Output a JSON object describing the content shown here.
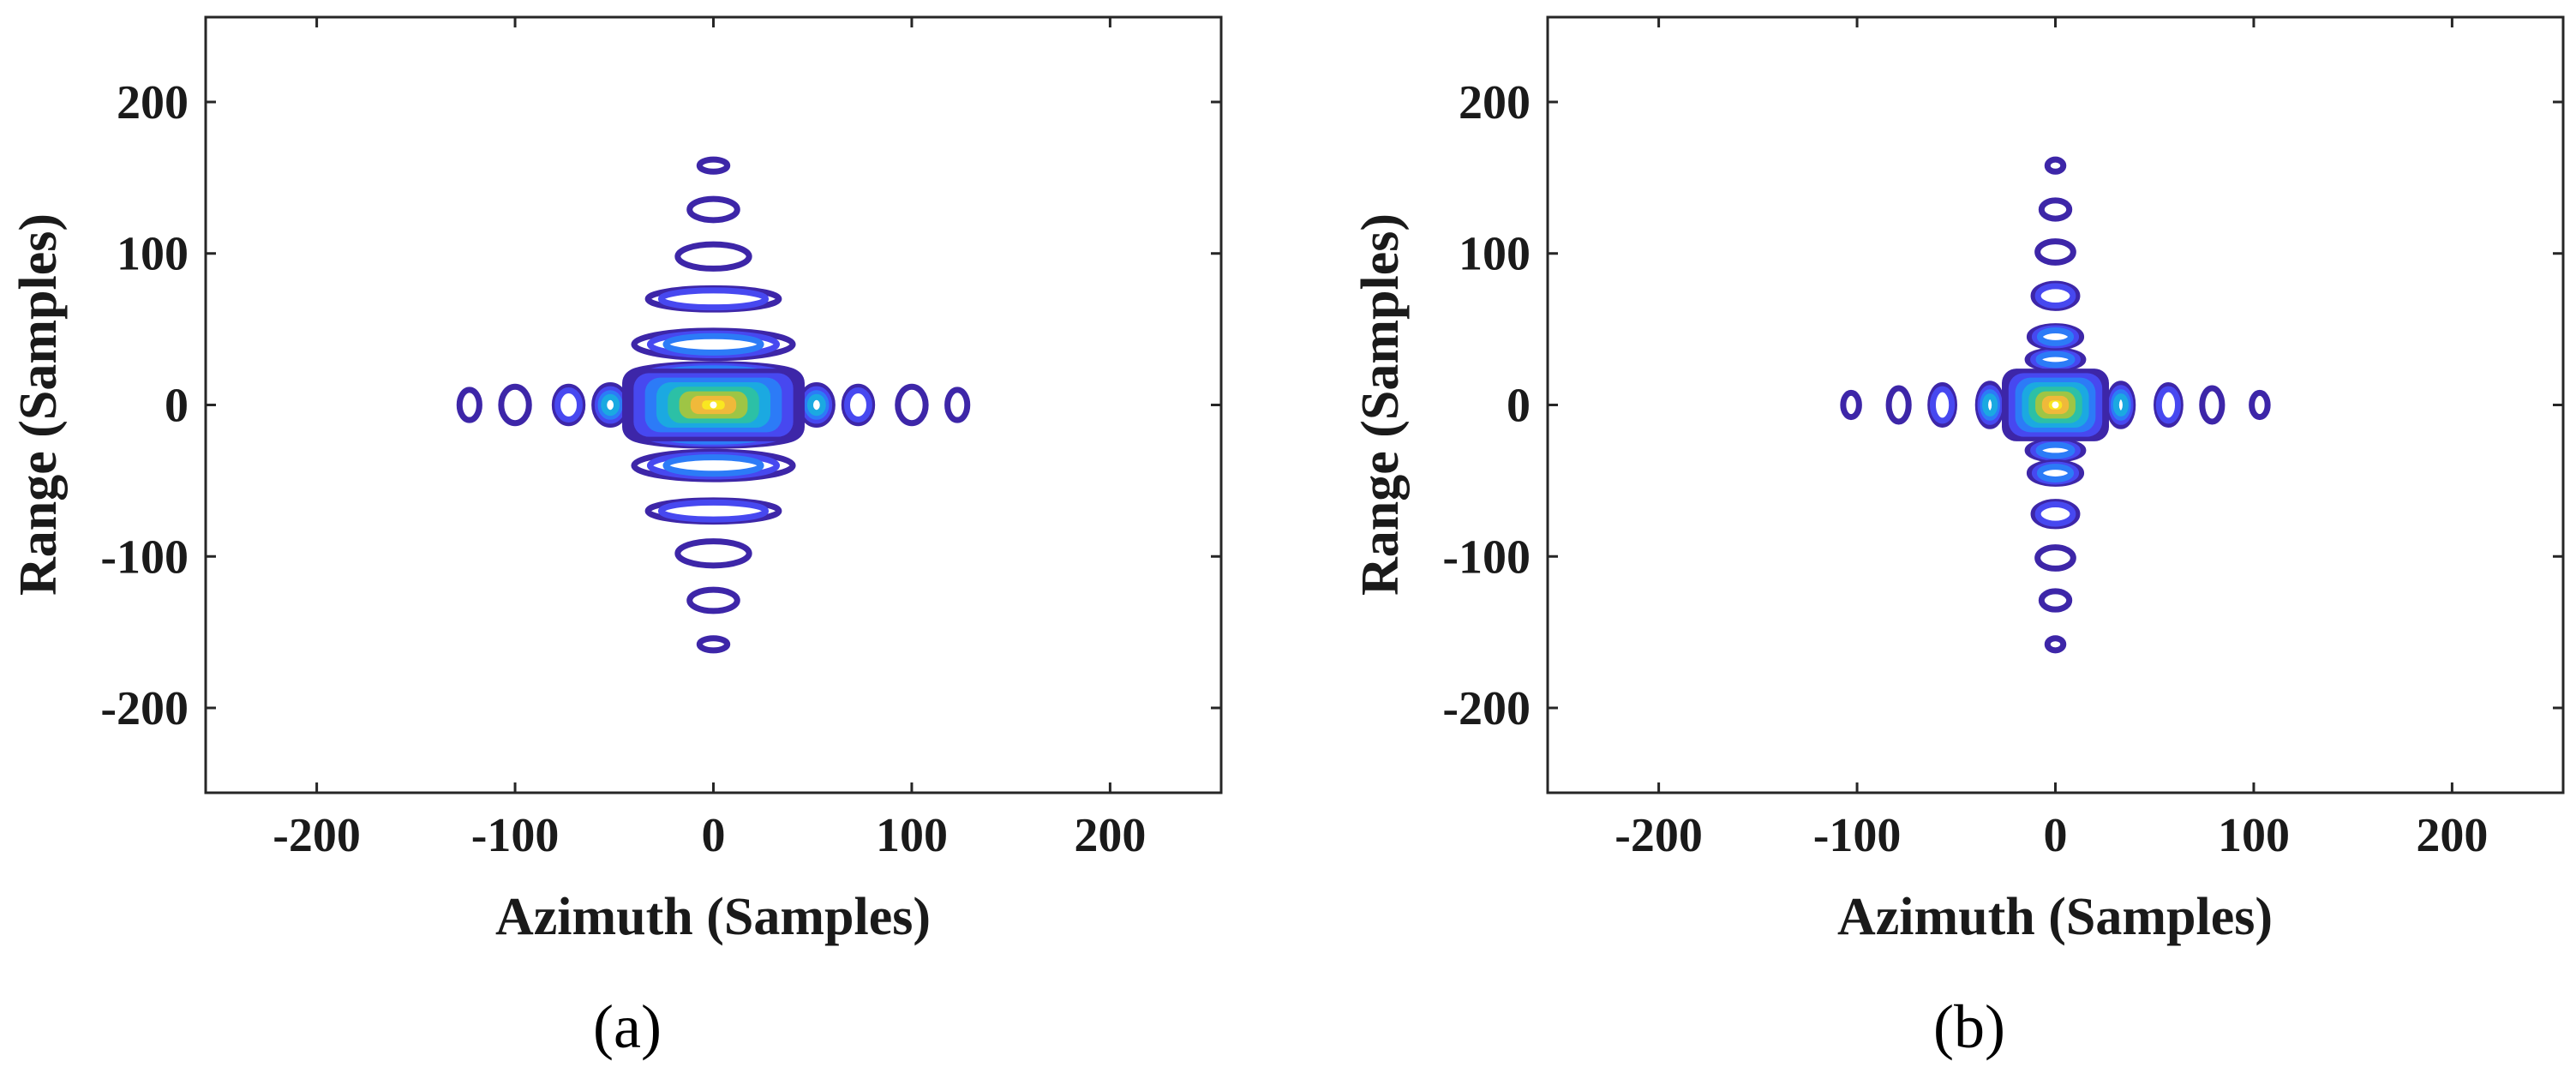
{
  "figure": {
    "panels": [
      {
        "label": "(a)",
        "xlabel": "Azimuth (Samples)",
        "ylabel": "Range (Samples)"
      },
      {
        "label": "(b)",
        "xlabel": "Azimuth (Samples)",
        "ylabel": "Range (Samples)"
      }
    ]
  },
  "chart_data": [
    {
      "type": "contour",
      "label": "(a)",
      "xlabel": "Azimuth (Samples)",
      "ylabel": "Range (Samples)",
      "xlim": [
        -256,
        256
      ],
      "ylim": [
        -256,
        256
      ],
      "xticks": [
        -200,
        -100,
        0,
        100,
        200
      ],
      "yticks": [
        -200,
        -100,
        0,
        100,
        200
      ],
      "colormap": [
        "#3d26a8",
        "#4748f0",
        "#2c7bf7",
        "#1ba9e1",
        "#2cc0a6",
        "#9ec545",
        "#f0b93a",
        "#f9e721"
      ],
      "peak": {
        "azimuth": 0,
        "range": 0
      },
      "azimuth_sidelobes": [
        {
          "center": 30,
          "half_width": 6,
          "half_height": 9,
          "level": 4
        },
        {
          "center": 52,
          "half_width": 8,
          "half_height": 13,
          "level": 3
        },
        {
          "center": 73,
          "half_width": 7,
          "half_height": 12,
          "level": 1
        },
        {
          "center": 100,
          "half_width": 7,
          "half_height": 12,
          "level": 0
        },
        {
          "center": 123,
          "half_width": 5,
          "half_height": 10,
          "level": 0
        }
      ],
      "range_sidelobes": [
        {
          "center": 20,
          "half_width": 42,
          "half_height": 7,
          "level": 2
        },
        {
          "center": 40,
          "half_width": 40,
          "half_height": 9,
          "level": 2
        },
        {
          "center": 70,
          "half_width": 33,
          "half_height": 7,
          "level": 1
        },
        {
          "center": 98,
          "half_width": 18,
          "half_height": 8,
          "level": 0
        },
        {
          "center": 129,
          "half_width": 12,
          "half_height": 7,
          "level": 0
        },
        {
          "center": 158,
          "half_width": 7,
          "half_height": 4,
          "level": 0
        }
      ]
    },
    {
      "type": "contour",
      "label": "(b)",
      "xlabel": "Azimuth (Samples)",
      "ylabel": "Range (Samples)",
      "xlim": [
        -256,
        256
      ],
      "ylim": [
        -256,
        256
      ],
      "xticks": [
        -200,
        -100,
        0,
        100,
        200
      ],
      "yticks": [
        -200,
        -100,
        0,
        100,
        200
      ],
      "colormap": [
        "#3d26a8",
        "#4748f0",
        "#2c7bf7",
        "#1ba9e1",
        "#2cc0a6",
        "#9ec545",
        "#f0b93a",
        "#f9e721"
      ],
      "peak": {
        "azimuth": 0,
        "range": 0
      },
      "azimuth_sidelobes": [
        {
          "center": 33,
          "half_width": 6,
          "half_height": 14,
          "level": 3
        },
        {
          "center": 57,
          "half_width": 6,
          "half_height": 13,
          "level": 1
        },
        {
          "center": 79,
          "half_width": 5,
          "half_height": 11,
          "level": 0
        },
        {
          "center": 103,
          "half_width": 4,
          "half_height": 8,
          "level": 0
        }
      ],
      "range_sidelobes": [
        {
          "center": 30,
          "half_width": 14,
          "half_height": 6,
          "level": 2
        },
        {
          "center": 45,
          "half_width": 13,
          "half_height": 7,
          "level": 2
        },
        {
          "center": 72,
          "half_width": 11,
          "half_height": 8,
          "level": 1
        },
        {
          "center": 101,
          "half_width": 9,
          "half_height": 7,
          "level": 0
        },
        {
          "center": 129,
          "half_width": 7,
          "half_height": 6,
          "level": 0
        },
        {
          "center": 158,
          "half_width": 4,
          "half_height": 4,
          "level": 0
        }
      ]
    }
  ]
}
